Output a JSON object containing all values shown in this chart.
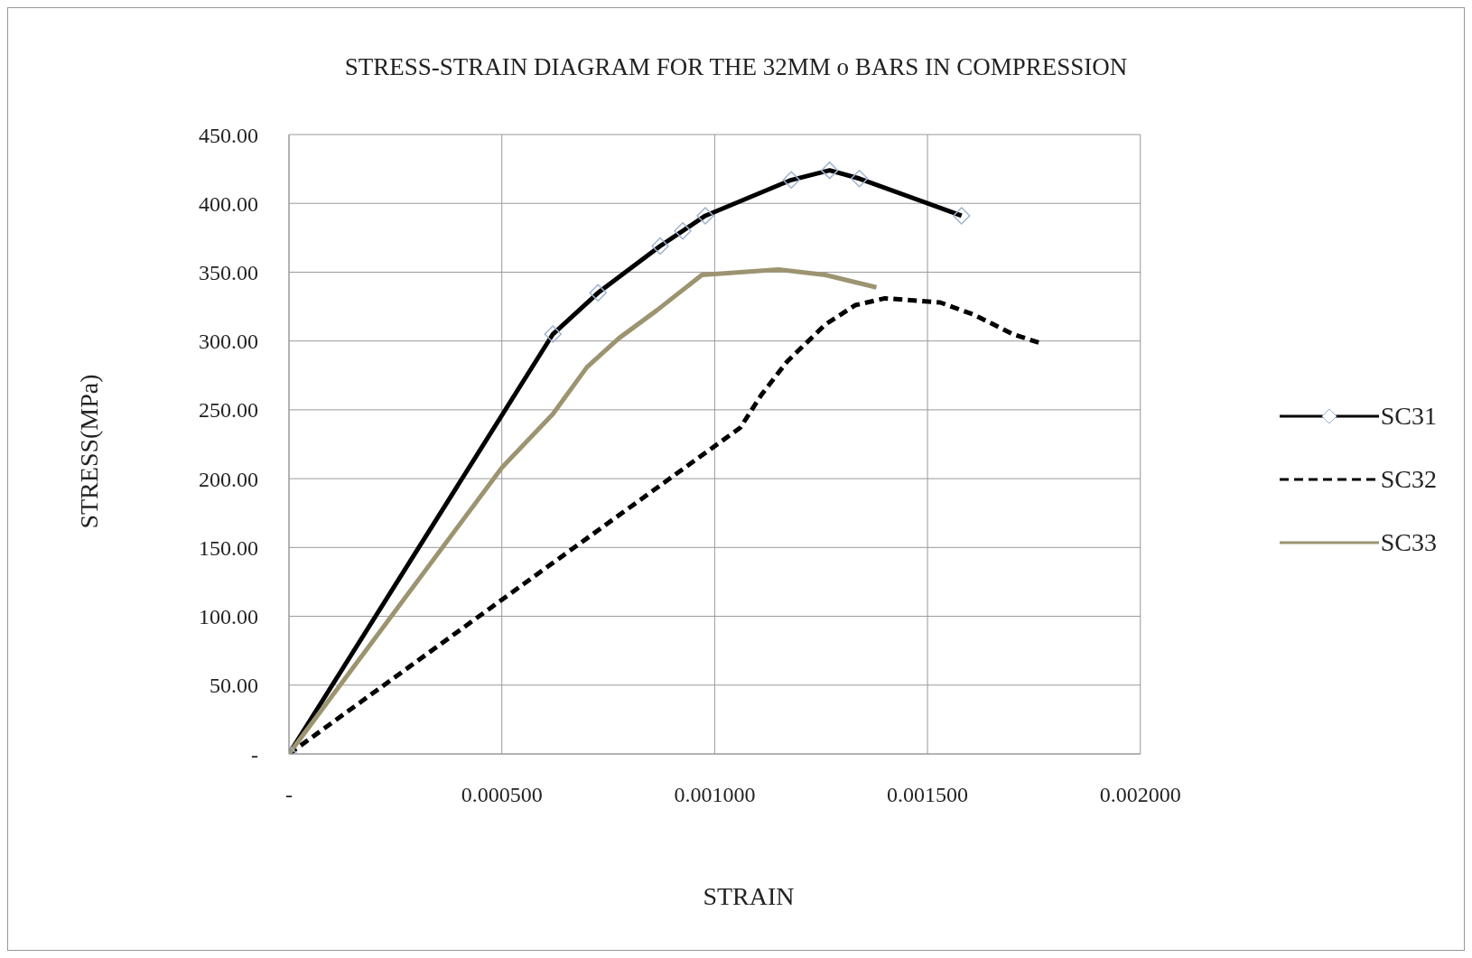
{
  "chart_data": {
    "type": "line",
    "title": "STRESS-STRAIN DIAGRAM FOR THE 32MM o BARS IN COMPRESSION",
    "xlabel": "STRAIN",
    "ylabel": "STRESS(MPa)",
    "xlim": [
      0,
      0.002
    ],
    "xticks": [
      {
        "value": 0,
        "label": "-"
      },
      {
        "value": 0.0005,
        "label": "0.000500"
      },
      {
        "value": 0.001,
        "label": "0.001000"
      },
      {
        "value": 0.0015,
        "label": "0.001500"
      },
      {
        "value": 0.002,
        "label": "0.002000"
      }
    ],
    "ylim": [
      0,
      450
    ],
    "yticks": [
      {
        "value": 0,
        "label": "-"
      },
      {
        "value": 50,
        "label": "50.00"
      },
      {
        "value": 100,
        "label": "100.00"
      },
      {
        "value": 150,
        "label": "150.00"
      },
      {
        "value": 200,
        "label": "200.00"
      },
      {
        "value": 250,
        "label": "250.00"
      },
      {
        "value": 300,
        "label": "300.00"
      },
      {
        "value": 350,
        "label": "350.00"
      },
      {
        "value": 400,
        "label": "400.00"
      },
      {
        "value": 450,
        "label": "450.00"
      }
    ],
    "grid": true,
    "legend": "right",
    "series": [
      {
        "name": "SC31",
        "color": "#000000",
        "marker": "diamond",
        "line_style": "solid",
        "x": [
          0,
          0.00062,
          0.000726,
          0.000872,
          0.000925,
          0.000978,
          0.00118,
          0.00127,
          0.00134,
          0.00158
        ],
        "values": [
          0,
          305,
          335,
          369,
          380,
          391,
          417,
          424,
          418,
          391
        ]
      },
      {
        "name": "SC32",
        "color": "#000000",
        "marker": "none",
        "line_style": "dashed",
        "x": [
          0,
          0.0005,
          0.00106,
          0.00111,
          0.00117,
          0.00126,
          0.00133,
          0.0014,
          0.00153,
          0.00161,
          0.0017,
          0.00177
        ],
        "values": [
          0,
          112,
          237,
          261,
          285,
          312,
          326,
          331,
          328,
          319,
          305,
          298
        ]
      },
      {
        "name": "SC33",
        "color": "#9c9470",
        "marker": "none",
        "line_style": "solid",
        "x": [
          0,
          0.0005,
          0.00062,
          0.0007,
          0.000775,
          0.000863,
          0.00097,
          0.00115,
          0.00126,
          0.00138
        ],
        "values": [
          0,
          208,
          247,
          281,
          302,
          322,
          348,
          352,
          348,
          339
        ]
      }
    ]
  }
}
